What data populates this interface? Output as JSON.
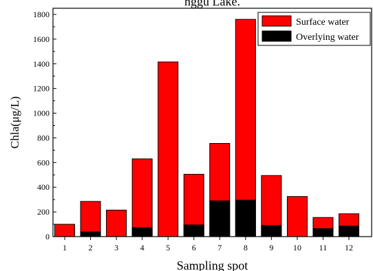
{
  "top_caption": "nggu Lake.",
  "chart_data": {
    "type": "bar",
    "stacked": false,
    "overlay": true,
    "title": "",
    "xlabel": "Sampling spot",
    "ylabel": "Chla(μg/L)",
    "ylim": [
      0,
      1850
    ],
    "yticks": [
      0,
      200,
      400,
      600,
      800,
      1000,
      1200,
      1400,
      1600,
      1800
    ],
    "categories": [
      "1",
      "2",
      "3",
      "4",
      "5",
      "6",
      "7",
      "8",
      "9",
      "10",
      "11",
      "12"
    ],
    "series": [
      {
        "name": "Surface water",
        "color": "#ff0000",
        "values": [
          100,
          285,
          215,
          630,
          1415,
          505,
          755,
          1760,
          495,
          325,
          155,
          185
        ]
      },
      {
        "name": "Overlying water",
        "color": "#000000",
        "values": [
          0,
          38,
          0,
          72,
          0,
          95,
          290,
          295,
          90,
          0,
          65,
          85
        ]
      }
    ],
    "legend_position": "top-right",
    "grid": false
  }
}
